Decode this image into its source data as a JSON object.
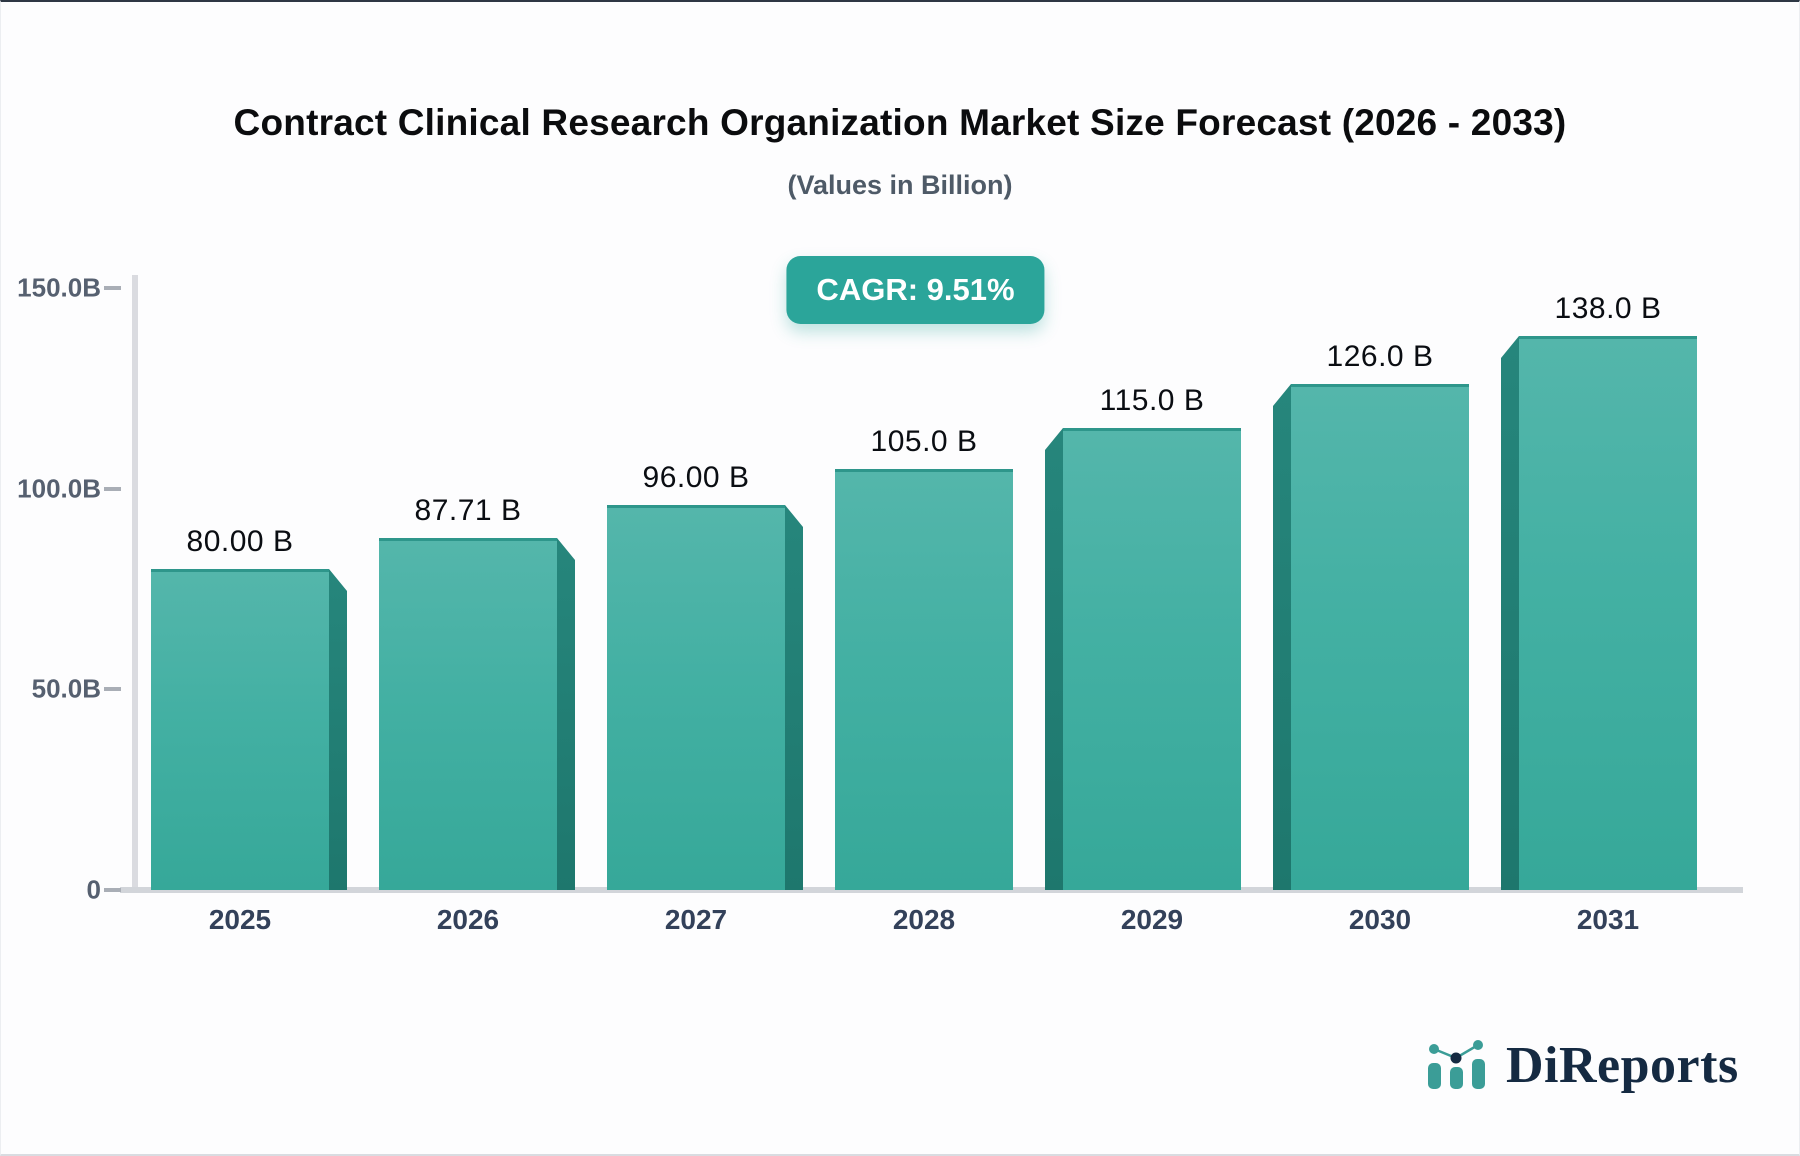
{
  "header": {
    "title": "Contract Clinical Research Organization Market Size Forecast (2026 - 2033)",
    "subtitle": "(Values in Billion)",
    "cagr_badge": "CAGR: 9.51%"
  },
  "chart_data": {
    "type": "bar",
    "title": "Contract Clinical Research Organization Market Size Forecast (2026 - 2033)",
    "subtitle": "(Values in Billion)",
    "categories": [
      "2025",
      "2026",
      "2027",
      "2028",
      "2029",
      "2030",
      "2031"
    ],
    "values": [
      80.0,
      87.71,
      96.0,
      105.0,
      115.0,
      126.0,
      138.0
    ],
    "value_labels": [
      "80.00 B",
      "87.71 B",
      "96.00 B",
      "105.0 B",
      "115.0 B",
      "126.0 B",
      "138.0 B"
    ],
    "unit": "Billion",
    "ylim": [
      0,
      150
    ],
    "yticks": [
      {
        "label": "150.0B",
        "value": 150
      },
      {
        "label": "100.0B",
        "value": 100
      },
      {
        "label": "50.0B",
        "value": 50
      },
      {
        "label": "0",
        "value": 0
      }
    ],
    "grid": "off",
    "legend": "none",
    "bar_3d_sides": [
      "right",
      "right",
      "right",
      "none",
      "left",
      "left",
      "left"
    ],
    "annotation": "CAGR: 9.51%"
  },
  "colors": {
    "bar_face_top": "#54b6ab",
    "bar_face_bottom": "#36a899",
    "bar_side": "#1f7c72",
    "bar_top_edge": "#2e968b",
    "badge_background": "#2ba59a",
    "badge_text": "#ffffff",
    "axis_line": "#d5d7dc",
    "y_label": "#566070",
    "x_label": "#33415a",
    "value_label": "#0a0d12",
    "logo_navy": "#152a42",
    "logo_teal": "#3b9d97"
  },
  "branding": {
    "logo_text": "DiReports",
    "logo_icon": "mini-bar-line-chart-icon"
  }
}
